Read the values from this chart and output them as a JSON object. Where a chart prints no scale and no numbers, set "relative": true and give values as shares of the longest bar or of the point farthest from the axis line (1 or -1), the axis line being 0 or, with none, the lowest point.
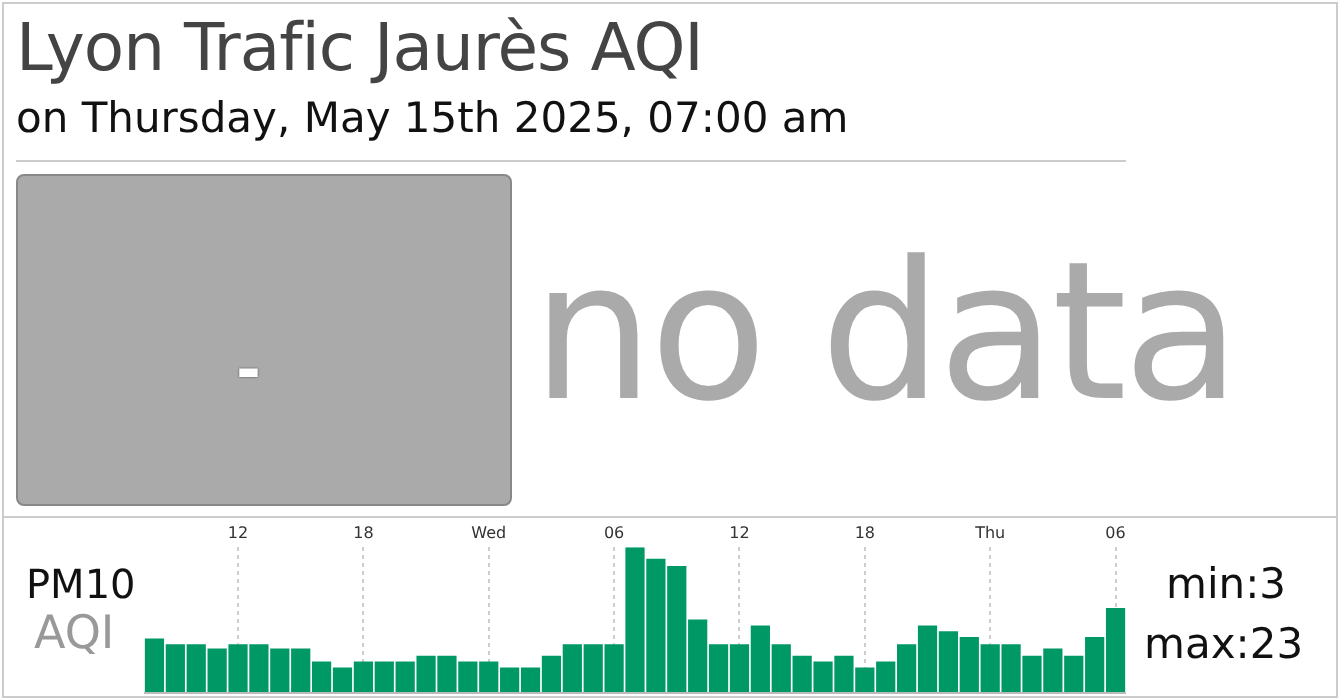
{
  "chart_data": {
    "type": "bar",
    "title": "Lyon Trafic Jaurès AQI",
    "subtitle": "on Thursday, May 15th 2025, 07:00 am",
    "ylabel": "PM10",
    "annotations": [
      "-",
      "no data",
      "AQI",
      "min:3",
      "max:23"
    ],
    "categories": [
      null,
      null,
      null,
      null,
      "12",
      null,
      null,
      null,
      null,
      null,
      "18",
      null,
      null,
      null,
      null,
      null,
      "Wed",
      null,
      null,
      null,
      null,
      null,
      "06",
      null,
      null,
      null,
      null,
      null,
      "12",
      null,
      null,
      null,
      null,
      null,
      "18",
      null,
      null,
      null,
      null,
      null,
      "Thu",
      null,
      null,
      null,
      null,
      null,
      "06"
    ],
    "values": [
      0.37,
      0.33,
      0.33,
      0.3,
      0.33,
      0.33,
      0.3,
      0.3,
      0.21,
      0.17,
      0.21,
      0.21,
      0.21,
      0.25,
      0.25,
      0.21,
      0.21,
      0.17,
      0.17,
      0.25,
      0.33,
      0.33,
      0.33,
      1,
      0.92,
      0.87,
      0.5,
      0.33,
      0.33,
      0.46,
      0.33,
      0.25,
      0.21,
      0.25,
      0.17,
      0.21,
      0.33,
      0.46,
      0.42,
      0.38,
      0.33,
      0.33,
      0.25,
      0.3,
      0.25,
      0.38,
      0.58
    ],
    "color": "#009966",
    "relative": true,
    "grid": "x"
  }
}
